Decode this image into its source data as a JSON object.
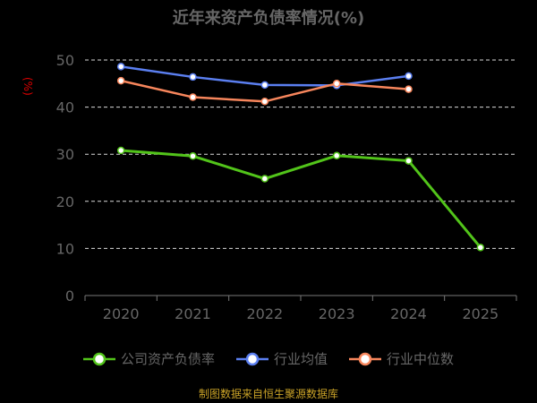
{
  "title": "近年来资产负债率情况(%)",
  "source": "制图数据来自恒生聚源数据库",
  "unit_label": "(%)",
  "chart_data": {
    "type": "line",
    "categories": [
      "2020",
      "2021",
      "2022",
      "2023",
      "2024",
      "2025"
    ],
    "ylim": [
      0,
      50
    ],
    "yticks": [
      0,
      10,
      20,
      30,
      40,
      50
    ],
    "grid": true,
    "legend_position": "bottom",
    "series": [
      {
        "name": "公司资产负债率",
        "color": "#52c41a",
        "values": [
          30.8,
          29.6,
          24.8,
          29.7,
          28.6,
          10.2
        ]
      },
      {
        "name": "行业均值",
        "color": "#5b7ff0",
        "values": [
          48.6,
          46.4,
          44.7,
          44.6,
          46.6,
          null
        ]
      },
      {
        "name": "行业中位数",
        "color": "#f7865c",
        "values": [
          45.6,
          42.1,
          41.2,
          45.0,
          43.8,
          null
        ]
      }
    ]
  }
}
